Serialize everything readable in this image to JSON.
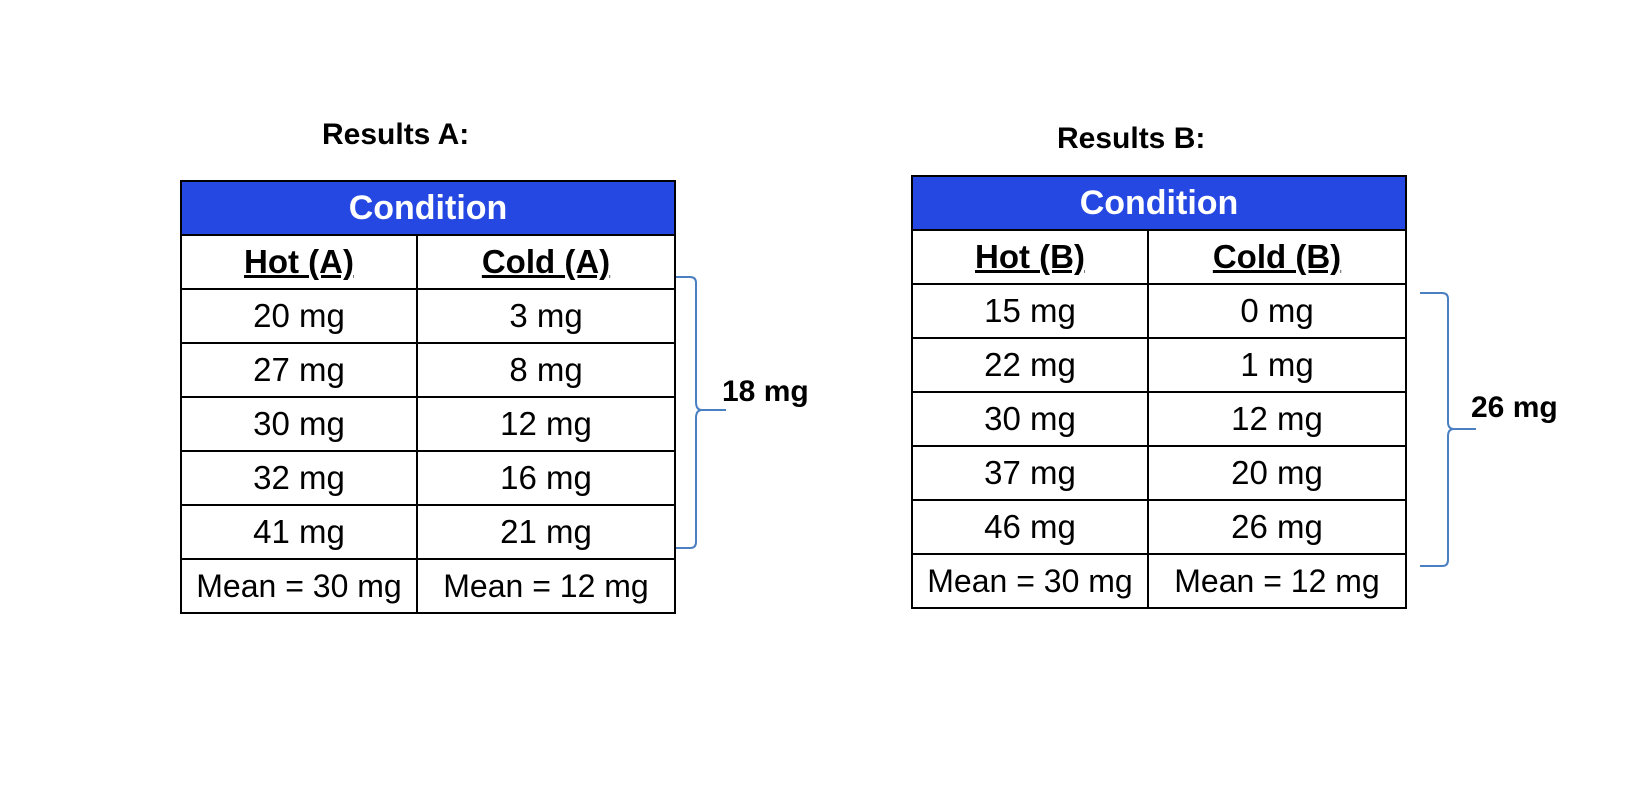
{
  "results_a": {
    "title": "Results A:",
    "header": "Condition",
    "columns": [
      "Hot (A)",
      "Cold (A)"
    ],
    "rows": [
      [
        "20 mg",
        "3 mg"
      ],
      [
        "27 mg",
        "8 mg"
      ],
      [
        "30 mg",
        "12 mg"
      ],
      [
        "32 mg",
        "16 mg"
      ],
      [
        "41 mg",
        "21 mg"
      ]
    ],
    "means": [
      "Mean = 30 mg",
      "Mean = 12 mg"
    ],
    "range_label": "18 mg",
    "brace_color": "#4a7fc1"
  },
  "results_b": {
    "title": "Results B:",
    "header": "Condition",
    "columns": [
      "Hot (B)",
      "Cold (B)"
    ],
    "rows": [
      [
        "15 mg",
        "0 mg"
      ],
      [
        "22 mg",
        "1 mg"
      ],
      [
        "30 mg",
        "12 mg"
      ],
      [
        "37 mg",
        "20 mg"
      ],
      [
        "46 mg",
        "26 mg"
      ]
    ],
    "means": [
      "Mean = 30 mg",
      "Mean = 12 mg"
    ],
    "range_label": "26 mg",
    "brace_color": "#4a7fc1"
  },
  "header_color": "#2548e2"
}
